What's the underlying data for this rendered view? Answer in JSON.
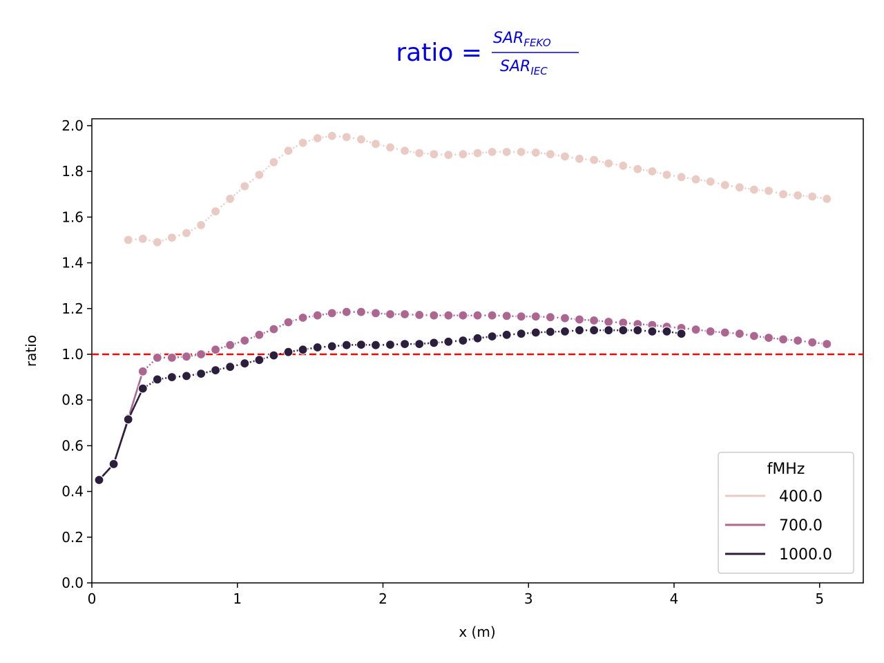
{
  "chart_data": {
    "type": "line",
    "title": {
      "lhs": "ratio = ",
      "numerator": "SAR",
      "numerator_sub": "FEKO",
      "denominator": "SAR",
      "denominator_sub": "IEC",
      "color": "#0000ee"
    },
    "xlabel": "x (m)",
    "ylabel": "ratio",
    "xlim": [
      0,
      5.3
    ],
    "ylim": [
      0,
      2.03
    ],
    "xticks": [
      "0",
      "1",
      "2",
      "3",
      "4",
      "5"
    ],
    "xtick_values": [
      0,
      1,
      2,
      3,
      4,
      5
    ],
    "yticks": [
      "0.0",
      "0.2",
      "0.4",
      "0.6",
      "0.8",
      "1.0",
      "1.2",
      "1.4",
      "1.6",
      "1.8",
      "2.0"
    ],
    "ytick_values": [
      0,
      0.2,
      0.4,
      0.6,
      0.8,
      1.0,
      1.2,
      1.4,
      1.6,
      1.8,
      2.0
    ],
    "reference_line": {
      "y": 1.0,
      "color": "#ff0000",
      "style": "dashed"
    },
    "legend": {
      "title": "fMHz",
      "position": "lower-right"
    },
    "grid": false,
    "series": [
      {
        "name": "400.0",
        "color": "#e9cbc4",
        "x": [
          0.25,
          0.35,
          0.45,
          0.55,
          0.65,
          0.75,
          0.85,
          0.95,
          1.05,
          1.15,
          1.25,
          1.35,
          1.45,
          1.55,
          1.65,
          1.75,
          1.85,
          1.95,
          2.05,
          2.15,
          2.25,
          2.35,
          2.45,
          2.55,
          2.65,
          2.75,
          2.85,
          2.95,
          3.05,
          3.15,
          3.25,
          3.35,
          3.45,
          3.55,
          3.65,
          3.75,
          3.85,
          3.95,
          4.05,
          4.15,
          4.25,
          4.35,
          4.45,
          4.55,
          4.65,
          4.75,
          4.85,
          4.95,
          5.05
        ],
        "y": [
          1.5,
          1.505,
          1.49,
          1.51,
          1.53,
          1.565,
          1.625,
          1.68,
          1.735,
          1.785,
          1.84,
          1.89,
          1.925,
          1.945,
          1.955,
          1.95,
          1.94,
          1.92,
          1.905,
          1.89,
          1.88,
          1.875,
          1.872,
          1.875,
          1.88,
          1.885,
          1.885,
          1.885,
          1.882,
          1.875,
          1.865,
          1.855,
          1.85,
          1.835,
          1.825,
          1.81,
          1.8,
          1.785,
          1.775,
          1.765,
          1.755,
          1.74,
          1.73,
          1.72,
          1.715,
          1.7,
          1.695,
          1.69,
          1.68
        ]
      },
      {
        "name": "700.0",
        "color": "#ad6690",
        "x": [
          0.05,
          0.15,
          0.25,
          0.35,
          0.45,
          0.55,
          0.65,
          0.75,
          0.85,
          0.95,
          1.05,
          1.15,
          1.25,
          1.35,
          1.45,
          1.55,
          1.65,
          1.75,
          1.85,
          1.95,
          2.05,
          2.15,
          2.25,
          2.35,
          2.45,
          2.55,
          2.65,
          2.75,
          2.85,
          2.95,
          3.05,
          3.15,
          3.25,
          3.35,
          3.45,
          3.55,
          3.65,
          3.75,
          3.85,
          3.95,
          4.05,
          4.15,
          4.25,
          4.35,
          4.45,
          4.55,
          4.65,
          4.75,
          4.85,
          4.95,
          5.05
        ],
        "y": [
          0.45,
          0.52,
          0.72,
          0.925,
          0.985,
          0.985,
          0.99,
          1.0,
          1.02,
          1.04,
          1.06,
          1.085,
          1.11,
          1.14,
          1.16,
          1.17,
          1.18,
          1.185,
          1.185,
          1.18,
          1.175,
          1.175,
          1.172,
          1.17,
          1.17,
          1.17,
          1.17,
          1.17,
          1.168,
          1.165,
          1.165,
          1.162,
          1.158,
          1.152,
          1.148,
          1.142,
          1.138,
          1.132,
          1.128,
          1.12,
          1.115,
          1.108,
          1.1,
          1.095,
          1.09,
          1.08,
          1.072,
          1.065,
          1.06,
          1.052,
          1.045
        ]
      },
      {
        "name": "1000.0",
        "color": "#2c1e3d",
        "x": [
          0.05,
          0.15,
          0.25,
          0.35,
          0.45,
          0.55,
          0.65,
          0.75,
          0.85,
          0.95,
          1.05,
          1.15,
          1.25,
          1.35,
          1.45,
          1.55,
          1.65,
          1.75,
          1.85,
          1.95,
          2.05,
          2.15,
          2.25,
          2.35,
          2.45,
          2.55,
          2.65,
          2.75,
          2.85,
          2.95,
          3.05,
          3.15,
          3.25,
          3.35,
          3.45,
          3.55,
          3.65,
          3.75,
          3.85,
          3.95,
          4.05
        ],
        "y": [
          0.45,
          0.52,
          0.715,
          0.85,
          0.89,
          0.9,
          0.905,
          0.915,
          0.93,
          0.945,
          0.96,
          0.975,
          0.995,
          1.01,
          1.02,
          1.03,
          1.035,
          1.04,
          1.042,
          1.04,
          1.042,
          1.045,
          1.045,
          1.05,
          1.055,
          1.06,
          1.07,
          1.078,
          1.085,
          1.09,
          1.095,
          1.098,
          1.1,
          1.105,
          1.105,
          1.105,
          1.105,
          1.105,
          1.1,
          1.1,
          1.09
        ]
      }
    ]
  }
}
